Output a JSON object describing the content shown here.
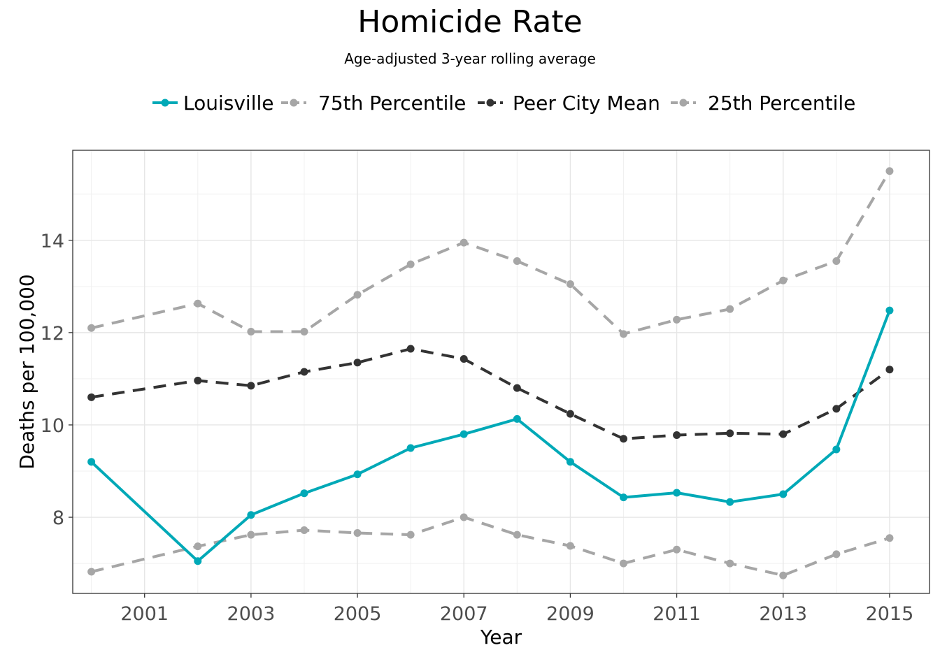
{
  "chart_data": {
    "type": "line",
    "title": "Homicide Rate",
    "subtitle": "Age-adjusted 3-year rolling average",
    "xlabel": "Year",
    "ylabel": "Deaths per 100,000",
    "x": [
      2000,
      2001,
      2002,
      2003,
      2004,
      2005,
      2006,
      2007,
      2008,
      2009,
      2010,
      2011,
      2012,
      2013,
      2014,
      2015
    ],
    "x_ticks": [
      2001,
      2003,
      2005,
      2007,
      2009,
      2011,
      2013,
      2015
    ],
    "y_ticks": [
      8,
      10,
      12,
      14
    ],
    "xlim": [
      1999.65,
      2015.75
    ],
    "ylim": [
      6.35,
      15.95
    ],
    "grid": true,
    "legend_position": "top",
    "series": [
      {
        "name": "Louisville",
        "color": "#00a9b7",
        "style": "solid",
        "x": [
          2000,
          2002,
          2003,
          2004,
          2005,
          2006,
          2007,
          2008,
          2009,
          2010,
          2011,
          2012,
          2013,
          2014,
          2015
        ],
        "values": [
          9.2,
          7.05,
          8.05,
          8.52,
          8.93,
          9.5,
          9.8,
          10.13,
          9.2,
          8.43,
          8.53,
          8.33,
          8.5,
          9.47,
          12.48
        ]
      },
      {
        "name": "75th Percentile",
        "color": "#a6a6a6",
        "style": "dashed",
        "x": [
          2000,
          2002,
          2003,
          2004,
          2005,
          2006,
          2007,
          2008,
          2009,
          2010,
          2011,
          2012,
          2013,
          2014,
          2015
        ],
        "values": [
          12.1,
          12.63,
          12.02,
          12.02,
          12.82,
          13.48,
          13.95,
          13.55,
          13.05,
          11.97,
          12.28,
          12.51,
          13.13,
          13.55,
          15.5
        ]
      },
      {
        "name": "Peer City Mean",
        "color": "#333333",
        "style": "dashed",
        "x": [
          2000,
          2002,
          2003,
          2004,
          2005,
          2006,
          2007,
          2008,
          2009,
          2010,
          2011,
          2012,
          2013,
          2014,
          2015
        ],
        "values": [
          10.6,
          10.96,
          10.85,
          11.15,
          11.35,
          11.65,
          11.43,
          10.8,
          10.24,
          9.7,
          9.78,
          9.82,
          9.8,
          10.35,
          11.2
        ]
      },
      {
        "name": "25th Percentile",
        "color": "#a6a6a6",
        "style": "dashed",
        "x": [
          2000,
          2002,
          2003,
          2004,
          2005,
          2006,
          2007,
          2008,
          2009,
          2010,
          2011,
          2012,
          2013,
          2014,
          2015
        ],
        "values": [
          6.82,
          7.37,
          7.62,
          7.72,
          7.66,
          7.62,
          8.0,
          7.62,
          7.38,
          7.0,
          7.3,
          7.0,
          6.74,
          7.2,
          7.55
        ]
      }
    ]
  }
}
